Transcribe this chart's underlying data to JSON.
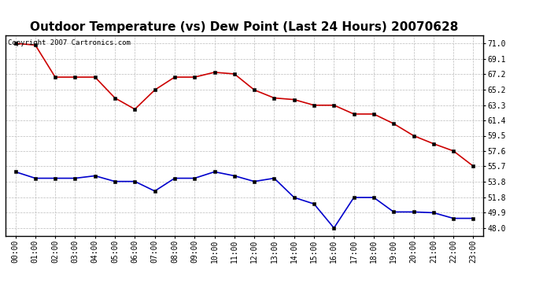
{
  "title": "Outdoor Temperature (vs) Dew Point (Last 24 Hours) 20070628",
  "subtitle": "Copyright 2007 Cartronics.com",
  "x_labels": [
    "00:00",
    "01:00",
    "02:00",
    "03:00",
    "04:00",
    "05:00",
    "06:00",
    "07:00",
    "08:00",
    "09:00",
    "10:00",
    "11:00",
    "12:00",
    "13:00",
    "14:00",
    "15:00",
    "16:00",
    "17:00",
    "18:00",
    "19:00",
    "20:00",
    "21:00",
    "22:00",
    "23:00"
  ],
  "temp_data": [
    71.0,
    70.8,
    66.8,
    66.8,
    66.8,
    64.2,
    62.8,
    65.2,
    66.8,
    66.8,
    67.4,
    67.2,
    65.2,
    64.2,
    64.0,
    63.3,
    63.3,
    62.2,
    62.2,
    61.0,
    59.5,
    58.5,
    57.6,
    55.7
  ],
  "dew_data": [
    55.0,
    54.2,
    54.2,
    54.2,
    54.5,
    53.8,
    53.8,
    52.6,
    54.2,
    54.2,
    55.0,
    54.5,
    53.8,
    54.2,
    51.8,
    51.0,
    48.0,
    51.8,
    51.8,
    50.0,
    50.0,
    49.9,
    49.2,
    49.2
  ],
  "temp_color": "#cc0000",
  "dew_color": "#0000cc",
  "background_color": "#ffffff",
  "grid_color": "#bbbbbb",
  "ylim": [
    47.0,
    72.0
  ],
  "yticks": [
    48.0,
    49.9,
    51.8,
    53.8,
    55.7,
    57.6,
    59.5,
    61.4,
    63.3,
    65.2,
    67.2,
    69.1,
    71.0
  ],
  "title_fontsize": 11,
  "subtitle_fontsize": 6.5,
  "tick_fontsize": 7
}
